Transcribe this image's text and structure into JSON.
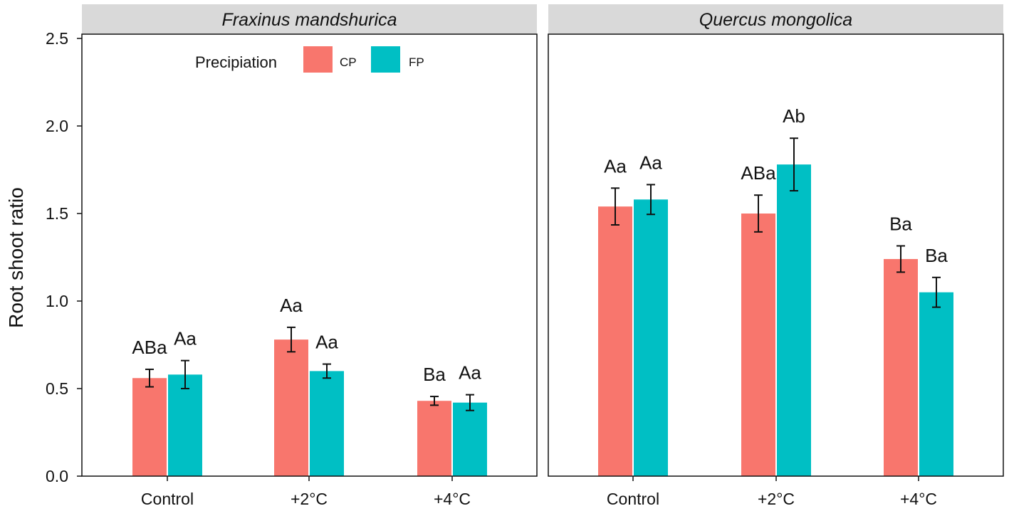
{
  "chart_data": {
    "type": "bar",
    "ylabel": "Root shoot ratio",
    "ylim": [
      0,
      2.5
    ],
    "yticks": [
      "0.0",
      "0.5",
      "1.0",
      "1.5",
      "2.0",
      "2.5"
    ],
    "categories": [
      "Control",
      "+2°C",
      "+4°C"
    ],
    "legend": {
      "title": "Precipiation",
      "placement": "top-left inside first panel",
      "entries": [
        {
          "name": "CP",
          "color": "#F8766D"
        },
        {
          "name": "FP",
          "color": "#00BFC4"
        }
      ]
    },
    "panels": [
      {
        "title": "Fraxinus mandshurica",
        "series": [
          {
            "name": "CP",
            "values": [
              0.56,
              0.78,
              0.43
            ],
            "errors": [
              0.05,
              0.07,
              0.025
            ],
            "labels": [
              "ABa",
              "Aa",
              "Ba"
            ]
          },
          {
            "name": "FP",
            "values": [
              0.58,
              0.6,
              0.42
            ],
            "errors": [
              0.08,
              0.04,
              0.045
            ],
            "labels": [
              "Aa",
              "Aa",
              "Aa"
            ]
          }
        ]
      },
      {
        "title": "Quercus mongolica",
        "series": [
          {
            "name": "CP",
            "values": [
              1.54,
              1.5,
              1.24
            ],
            "errors": [
              0.105,
              0.105,
              0.075
            ],
            "labels": [
              "Aa",
              "ABa",
              "Ba"
            ]
          },
          {
            "name": "FP",
            "values": [
              1.58,
              1.78,
              1.05
            ],
            "errors": [
              0.085,
              0.15,
              0.085
            ],
            "labels": [
              "Aa",
              "Ab",
              "Ba"
            ]
          }
        ]
      }
    ]
  }
}
